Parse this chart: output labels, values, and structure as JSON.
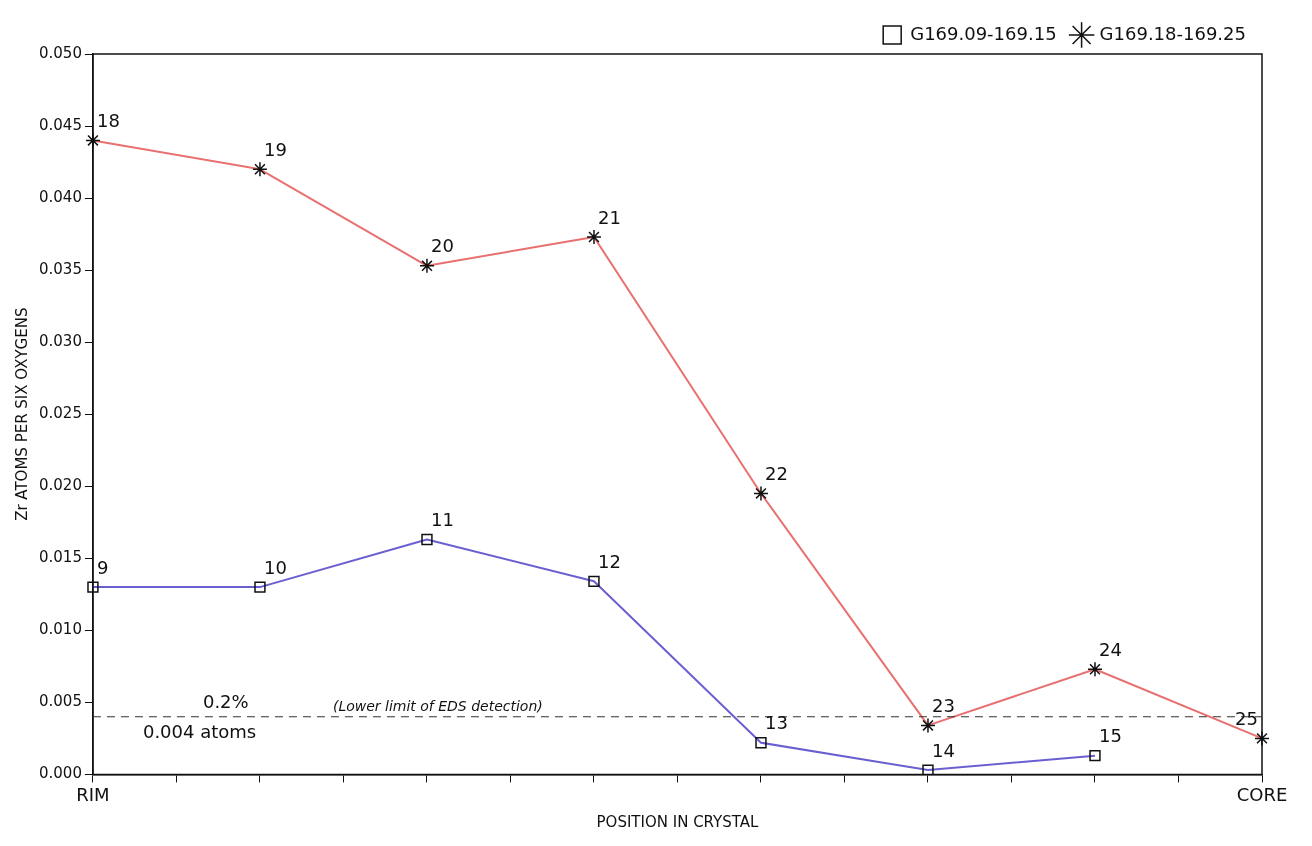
{
  "chart_data": {
    "type": "line",
    "xlabel": "POSITION IN CRYSTAL",
    "ylabel": "Zr ATOMS PER SIX OXYGENS",
    "categories": [
      "RIM",
      null,
      null,
      null,
      null,
      null,
      null,
      null,
      null,
      null,
      null,
      null,
      null,
      null,
      "CORE"
    ],
    "ylim": [
      0,
      0.05
    ],
    "yticks": [
      {
        "value": 0,
        "label": "0.000"
      },
      {
        "value": 0.005,
        "label": "0.005"
      },
      {
        "value": 0.01,
        "label": "0.010"
      },
      {
        "value": 0.015,
        "label": "0.015"
      },
      {
        "value": 0.02,
        "label": "0.020"
      },
      {
        "value": 0.025,
        "label": "0.025"
      },
      {
        "value": 0.03,
        "label": "0.030"
      },
      {
        "value": 0.035,
        "label": "0.035"
      },
      {
        "value": 0.04,
        "label": "0.040"
      },
      {
        "value": 0.045,
        "label": "0.045"
      },
      {
        "value": 0.05,
        "label": "0.050"
      }
    ],
    "series": [
      {
        "name": "G169.09-169.15",
        "color": "#6a5fd0",
        "marker": "square",
        "values": [
          0.013,
          null,
          0.013,
          null,
          0.0163,
          null,
          0.0134,
          null,
          0.0022,
          null,
          0.0003,
          null,
          0.0013,
          null,
          null
        ]
      },
      {
        "name": "G169.18-169.25",
        "color": "#e87070",
        "marker": "cross",
        "values": [
          0.044,
          null,
          0.042,
          null,
          0.0353,
          null,
          0.0373,
          null,
          0.0195,
          null,
          0.0034,
          null,
          0.0073,
          null,
          0.0025
        ]
      }
    ],
    "annotations": [
      "9",
      "10",
      "11",
      "12",
      "13",
      "14",
      "15",
      "18",
      "19",
      "20",
      "21",
      "22",
      "23",
      "24",
      "25",
      "0.2%",
      "(Lower limit of EDS detection)"
    ],
    "ref_lines": [
      {
        "axis": "y",
        "value": 0.004,
        "label": "0.004 atoms",
        "line_style": "dashed",
        "color": "#333333"
      }
    ],
    "legend": "top right",
    "line_style": "solid"
  }
}
